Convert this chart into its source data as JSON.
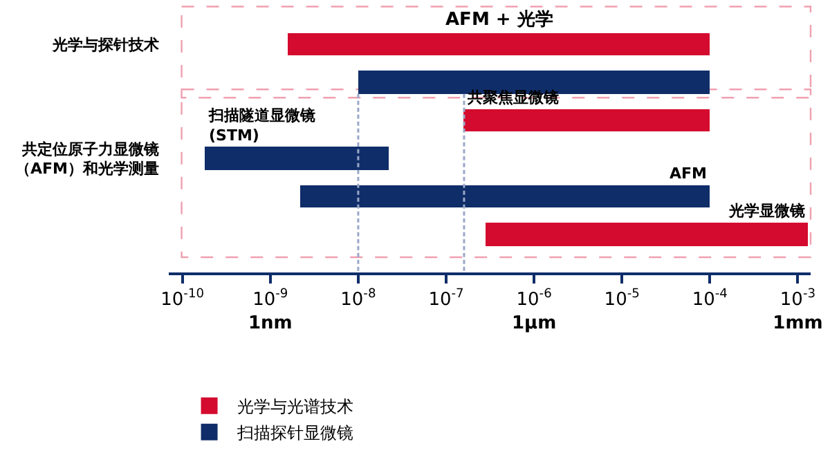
{
  "chart_data": {
    "type": "bar",
    "orientation": "horizontal",
    "log": "x",
    "categories": [
      "光学与探针技术",
      null,
      null,
      "共定位原子力显微镜（AFM）和光学测量",
      null,
      null
    ],
    "series": [
      {
        "name": "光学与光谱技术",
        "color": "#d40a2e",
        "base": [
          1.6e-09,
          null,
          1.6e-07,
          null,
          null,
          2.8e-07
        ],
        "values": [
          9.99984e-05,
          null,
          9.984e-05,
          null,
          null,
          0.00129972
        ]
      },
      {
        "name": "扫描探针显微镜",
        "color": "#0f2d69",
        "base": [
          null,
          1e-08,
          null,
          1.8e-10,
          2.2e-09,
          null
        ],
        "values": [
          null,
          9.999e-05,
          null,
          2.182e-08,
          9.99978e-05,
          null
        ]
      }
    ],
    "xlim": [
      7e-11,
      0.0014
    ],
    "xticks": [
      {
        "value": 1e-10,
        "label": "10$^{-10}$"
      },
      {
        "value": 1e-09,
        "label": "10$^{-9}$\n1nm"
      },
      {
        "value": 1e-08,
        "label": "10$^{-8}$"
      },
      {
        "value": 1e-07,
        "label": "10$^{-7}$"
      },
      {
        "value": 1e-06,
        "label": "10$^{-6}$\n1μm"
      },
      {
        "value": 1e-05,
        "label": "10$^{-5}$"
      },
      {
        "value": 0.0001,
        "label": "10$^{-4}$"
      },
      {
        "value": 0.001,
        "label": "10$^{-3}$\n1mm"
      }
    ],
    "ref_lines": [
      {
        "axis": "x",
        "value": 1e-08,
        "color": "#9aa8c8",
        "line_style": "dotted"
      },
      {
        "axis": "x",
        "value": 1.6e-07,
        "color": "#9aa8c8",
        "line_style": "dotted"
      }
    ],
    "annotations": [
      "AFM + 光学",
      "共聚焦显微镜",
      "扫描隧道显微镜\n(STM)",
      "AFM",
      "光学显微镜"
    ],
    "legend": "bottom",
    "grid": false
  }
}
